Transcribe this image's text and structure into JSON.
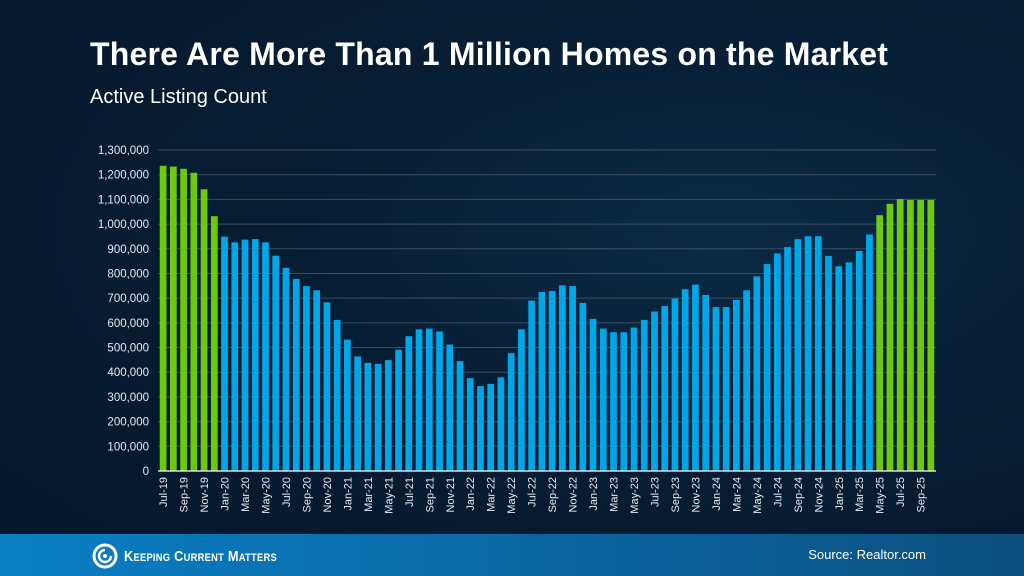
{
  "header": {
    "title": "There Are More Than 1 Million Homes on the Market",
    "subtitle": "Active Listing Count"
  },
  "footer": {
    "logo_text": "Keeping Current Matters",
    "source": "Source: Realtor.com"
  },
  "colors": {
    "highlight": "#6cc90e",
    "default": "#00a6e6",
    "background": "#061d33",
    "footer": "#0a6aa8"
  },
  "chart_data": {
    "type": "bar",
    "title": "Active Listing Count",
    "xlabel": "",
    "ylabel": "",
    "ylim": [
      0,
      1300000
    ],
    "yticks": [
      "0",
      "100,000",
      "200,000",
      "300,000",
      "400,000",
      "500,000",
      "600,000",
      "700,000",
      "800,000",
      "900,000",
      "1,000,000",
      "1,100,000",
      "1,200,000",
      "1,300,000"
    ],
    "grid": true,
    "categories": [
      "Jul-19",
      "Aug-19",
      "Sep-19",
      "Oct-19",
      "Nov-19",
      "Dec-19",
      "Jan-20",
      "Feb-20",
      "Mar-20",
      "Apr-20",
      "May-20",
      "Jun-20",
      "Jul-20",
      "Aug-20",
      "Sep-20",
      "Oct-20",
      "Nov-20",
      "Dec-20",
      "Jan-21",
      "Feb-21",
      "Mar-21",
      "Apr-21",
      "May-21",
      "Jun-21",
      "Jul-21",
      "Aug-21",
      "Sep-21",
      "Oct-21",
      "Nov-21",
      "Dec-21",
      "Jan-22",
      "Feb-22",
      "Mar-22",
      "Apr-22",
      "May-22",
      "Jun-22",
      "Jul-22",
      "Aug-22",
      "Sep-22",
      "Oct-22",
      "Nov-22",
      "Dec-22",
      "Jan-23",
      "Feb-23",
      "Mar-23",
      "Apr-23",
      "May-23",
      "Jun-23",
      "Jul-23",
      "Aug-23",
      "Sep-23",
      "Oct-23",
      "Nov-23",
      "Dec-23",
      "Jan-24",
      "Feb-24",
      "Mar-24",
      "Apr-24",
      "May-24",
      "Jun-24",
      "Jul-24",
      "Aug-24",
      "Sep-24",
      "Oct-24",
      "Nov-24",
      "Dec-24",
      "Jan-25",
      "Feb-25",
      "Mar-25",
      "Apr-25",
      "May-25",
      "Jun-25",
      "Jul-25",
      "Aug-25",
      "Sep-25",
      "Oct-25"
    ],
    "values": [
      1236000,
      1233000,
      1224000,
      1208000,
      1141000,
      1032000,
      949000,
      926000,
      937000,
      939000,
      926000,
      872000,
      823000,
      778000,
      749000,
      732000,
      683000,
      612000,
      532000,
      464000,
      438000,
      434000,
      449000,
      491000,
      546000,
      574000,
      577000,
      565000,
      512000,
      445000,
      376000,
      344000,
      353000,
      379000,
      477000,
      574000,
      690000,
      725000,
      729000,
      752000,
      749000,
      681000,
      616000,
      577000,
      562000,
      562000,
      581000,
      612000,
      646000,
      668000,
      699000,
      736000,
      755000,
      713000,
      664000,
      664000,
      693000,
      732000,
      788000,
      838000,
      881000,
      907000,
      939000,
      951000,
      951000,
      871000,
      829000,
      845000,
      891000,
      958000,
      1036000,
      1082000,
      1101000,
      1098000,
      1098000,
      1098000
    ],
    "highlighted": [
      "Jul-19",
      "Aug-19",
      "Sep-19",
      "Oct-19",
      "Nov-19",
      "Dec-19",
      "May-25",
      "Jun-25",
      "Jul-25",
      "Aug-25",
      "Sep-25",
      "Oct-25"
    ]
  }
}
